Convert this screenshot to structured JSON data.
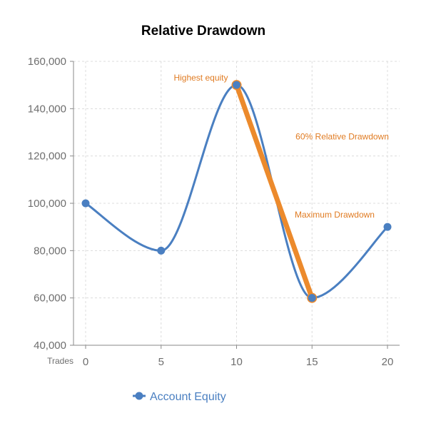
{
  "chart_data": {
    "type": "line",
    "title": "Relative Drawdown",
    "xlabel": "Trades",
    "ylabel": "",
    "x": [
      0,
      5,
      10,
      15,
      20
    ],
    "xlim": [
      0,
      20
    ],
    "ylim": [
      40000,
      160000
    ],
    "x_ticks": [
      "0",
      "5",
      "10",
      "15",
      "20"
    ],
    "y_ticks": [
      "40,000",
      "60,000",
      "80,000",
      "100,000",
      "120,000",
      "140,000",
      "160,000"
    ],
    "grid": true,
    "legend_position": "bottom-left",
    "series": [
      {
        "name": "Account Equity",
        "color": "#4a7fc1",
        "smooth": true,
        "values": [
          100000,
          80000,
          150000,
          60000,
          90000
        ]
      }
    ],
    "drawdown_line": {
      "color": "#ec8a2c",
      "from": [
        10,
        150000
      ],
      "to": [
        15,
        60000
      ]
    },
    "annotations": [
      {
        "key": "highest",
        "text": "Highest equity",
        "x": 10,
        "y": 150000,
        "color": "#e07b22"
      },
      {
        "key": "relative",
        "text": "60% Relative Drawdown",
        "x": 17,
        "y": 127000,
        "color": "#e07b22"
      },
      {
        "key": "maximum",
        "text": "Maximum Drawdown",
        "x": 16.5,
        "y": 94000,
        "color": "#e07b22"
      }
    ]
  }
}
